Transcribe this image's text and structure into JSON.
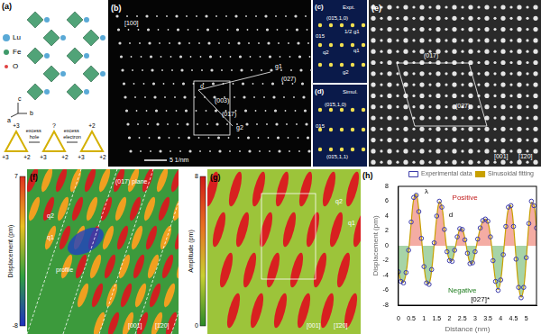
{
  "panels": {
    "a": {
      "label": "(a)",
      "texts": [
        "Lu",
        "Fe",
        "O",
        "c",
        "a",
        "b",
        "+3",
        "+3",
        "+2",
        "?",
        "+3",
        "+2",
        "+2",
        "+3",
        "+2",
        "excess hole",
        "excess electron"
      ]
    },
    "b": {
      "label": "(b)",
      "texts": [
        "[100]",
        "5 1/nm",
        "g1",
        "(027)",
        "(003)",
        "(017)",
        "g2",
        "o"
      ]
    },
    "c": {
      "label": "(c)",
      "texts": [
        "Expt.",
        "(01̄5,1,0)",
        "015",
        "1/2 g1",
        "q2",
        "q1",
        "g2"
      ]
    },
    "d": {
      "label": "(d)",
      "texts": [
        "Simul.",
        "(01̄5,1,0)",
        "015",
        "(01̄5,1,1)"
      ]
    },
    "e": {
      "label": "(e)",
      "texts": [
        "(017)",
        "(027)",
        "[001]",
        "[1̄20]"
      ]
    },
    "f": {
      "label": "(f)",
      "colorbar": {
        "title": "Displacement (pm)",
        "range": [
          -8,
          7
        ],
        "ticks": [
          -8,
          7
        ]
      },
      "texts": [
        "(017) plane",
        "q1",
        "q2",
        "profile",
        "[001]",
        "[1̄20]"
      ]
    },
    "g": {
      "label": "(g)",
      "colorbar": {
        "title": "Amplitude (pm)",
        "range": [
          0,
          8
        ],
        "ticks": [
          0,
          8
        ]
      },
      "texts": [
        "q1",
        "q2",
        "[001]",
        "[1̄20]"
      ]
    },
    "h": {
      "label": "(h)"
    }
  },
  "chart_data": {
    "type": "scatter",
    "x_label": "Distance (nm)",
    "y_label": "Displacement (pm)",
    "xlim": [
      0,
      5.4
    ],
    "xticks": [
      0,
      0.5,
      1,
      1.5,
      2,
      2.5,
      3,
      3.5,
      4,
      4.5,
      5
    ],
    "ylim": [
      -8,
      8
    ],
    "yticks": [
      -8,
      -6,
      -4,
      -2,
      0,
      2,
      4,
      6,
      8
    ],
    "grid": false,
    "legend": "top",
    "annotations": [
      "Positive",
      "Negative",
      "λ",
      "d",
      "[027]*"
    ],
    "x": [
      0,
      0.1,
      0.2,
      0.3,
      0.4,
      0.5,
      0.6,
      0.7,
      0.8,
      0.9,
      1,
      1.1,
      1.2,
      1.3,
      1.4,
      1.5,
      1.6,
      1.7,
      1.8,
      1.9,
      2,
      2.1,
      2.2,
      2.3,
      2.4,
      2.5,
      2.6,
      2.7,
      2.8,
      2.9,
      3,
      3.1,
      3.2,
      3.3,
      3.4,
      3.5,
      3.6,
      3.7,
      3.8,
      3.9,
      4,
      4.1,
      4.2,
      4.3,
      4.4,
      4.5,
      4.6,
      4.7,
      4.8,
      4.9,
      5,
      5.1,
      5.2,
      5.3,
      5.4
    ],
    "series": [
      {
        "name": "Experimental data",
        "type": "scatter",
        "marker": "circle",
        "color": "#3a3aa8",
        "values": [
          -3.5,
          -4.8,
          -5.0,
          -3.6,
          -0.6,
          3.2,
          6.5,
          6.8,
          4.6,
          1.0,
          -2.8,
          -5.0,
          -5.2,
          -3.2,
          0.4,
          4.0,
          6.0,
          5.2,
          2.2,
          -0.8,
          -2.0,
          -2.1,
          -0.6,
          1.2,
          2.3,
          2.2,
          0.8,
          -1.0,
          -2.4,
          -2.3,
          -0.8,
          0.9,
          2.4,
          3.4,
          3.6,
          3.3,
          1.2,
          -2.0,
          -4.8,
          -6.0,
          -4.6,
          -1.2,
          2.6,
          5.2,
          5.4,
          2.6,
          -1.8,
          -5.6,
          -7.0,
          -5.6,
          -1.6,
          3.0,
          6.0,
          5.4,
          2.4
        ]
      },
      {
        "name": "Sinusoidal fitting",
        "type": "line",
        "line_style": "solid",
        "color": "#c8a000",
        "values": [
          -3.4,
          -4.7,
          -4.9,
          -3.7,
          -0.8,
          3.0,
          6.3,
          6.9,
          4.8,
          1.2,
          -2.6,
          -4.9,
          -5.1,
          -3.3,
          0.2,
          3.8,
          5.9,
          5.3,
          2.4,
          -0.6,
          -1.9,
          -2.0,
          -0.7,
          1.0,
          2.2,
          2.2,
          1.0,
          -0.9,
          -2.3,
          -2.3,
          -0.9,
          0.8,
          2.3,
          3.3,
          3.6,
          3.2,
          1.3,
          -1.9,
          -4.7,
          -5.9,
          -4.7,
          -1.4,
          2.4,
          5.0,
          5.4,
          2.8,
          -1.6,
          -5.4,
          -6.9,
          -5.7,
          -1.8,
          2.8,
          5.8,
          5.5,
          2.6
        ]
      }
    ]
  }
}
